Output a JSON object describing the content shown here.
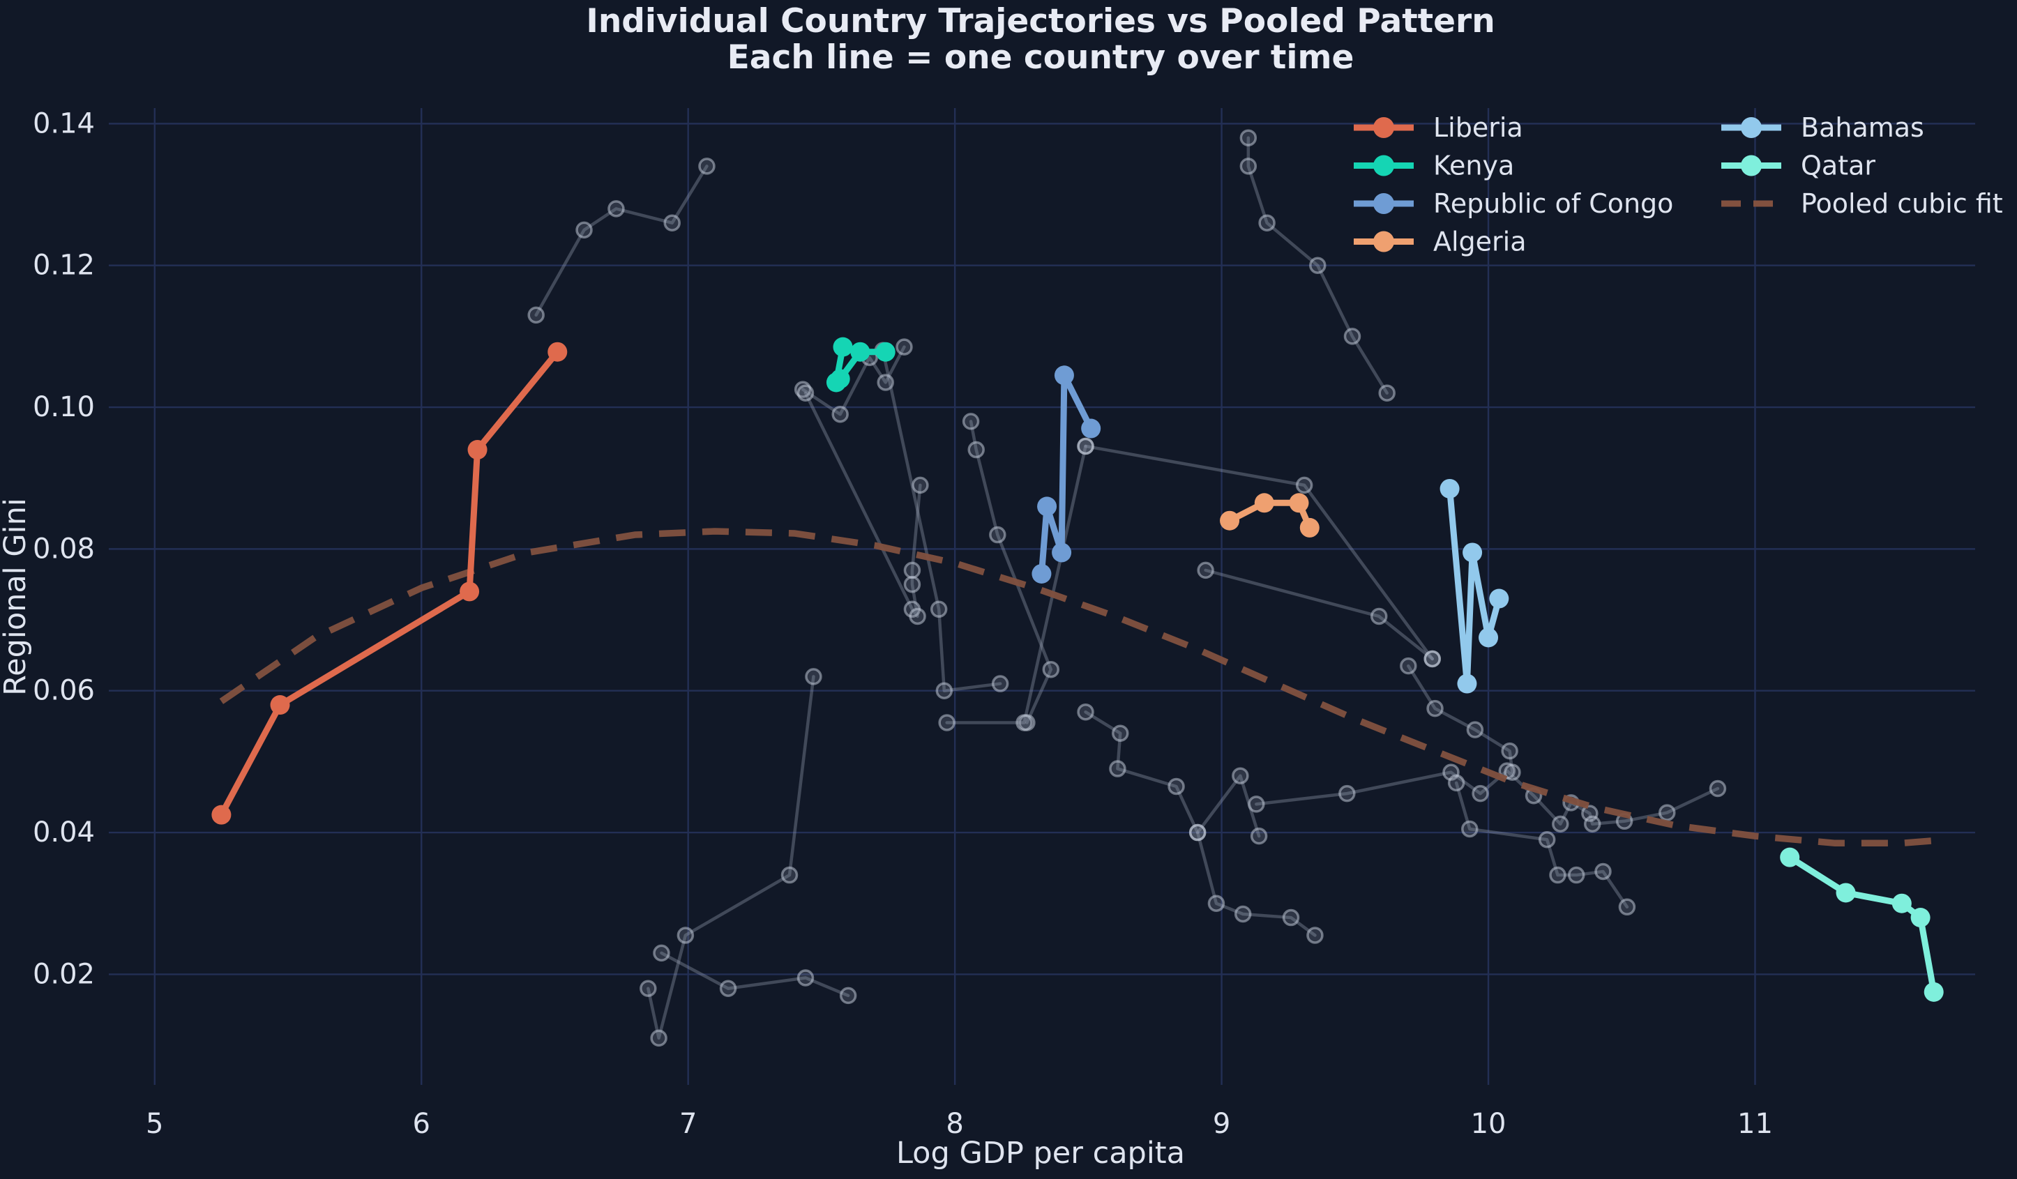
{
  "figure": {
    "title": "Individual Country Trajectories vs Pooled Pattern",
    "subtitle": "Each line = one country over time"
  },
  "legend": {
    "column1": [
      "Liberia",
      "Kenya",
      "Republic of Congo",
      "Algeria"
    ],
    "column2": [
      "Bahamas",
      "Qatar",
      "Pooled cubic fit"
    ]
  },
  "colors": {
    "background": "#111827",
    "grid": "#232f55",
    "text": "#e8ebf4",
    "background_lines": "#a9b1c5",
    "liberia": "#df6a4d",
    "kenya": "#15d5b4",
    "republic_of_congo": "#6f9cd4",
    "algeria": "#efa070",
    "bahamas": "#92c9ec",
    "qatar": "#7fefdc",
    "pooled_fit": "#82513f"
  },
  "chart_data": {
    "type": "line",
    "title": "Individual Country Trajectories vs Pooled Pattern",
    "subtitle": "Each line = one country over time",
    "xlabel": "Log GDP per capita",
    "ylabel": "Regional Gini",
    "xlim": [
      4.828,
      11.825
    ],
    "ylim": [
      0.0044,
      0.1422
    ],
    "x_ticks": [
      5,
      6,
      7,
      8,
      9,
      10,
      11
    ],
    "y_ticks": [
      0.02,
      0.04,
      0.06,
      0.08,
      0.1,
      0.12,
      0.14
    ],
    "y_tick_labels": [
      "0.02",
      "0.04",
      "0.06",
      "0.08",
      "0.10",
      "0.12",
      "0.14"
    ],
    "grid": true,
    "legend_position": "upper right, two columns",
    "series": [
      {
        "name": "Liberia",
        "color": "#df6a4d",
        "points": [
          [
            5.25,
            0.0425
          ],
          [
            5.47,
            0.058
          ],
          [
            6.18,
            0.074
          ],
          [
            6.21,
            0.094
          ],
          [
            6.51,
            0.1078
          ]
        ]
      },
      {
        "name": "Kenya",
        "color": "#15d5b4",
        "points": [
          [
            7.58,
            0.1085
          ],
          [
            7.555,
            0.1035
          ],
          [
            7.57,
            0.104
          ],
          [
            7.645,
            0.1078
          ],
          [
            7.74,
            0.1078
          ]
        ]
      },
      {
        "name": "Republic of Congo",
        "color": "#6f9cd4",
        "points": [
          [
            8.325,
            0.0765
          ],
          [
            8.345,
            0.086
          ],
          [
            8.4,
            0.0795
          ],
          [
            8.41,
            0.1045
          ],
          [
            8.51,
            0.097
          ]
        ]
      },
      {
        "name": "Algeria",
        "color": "#efa070",
        "points": [
          [
            9.03,
            0.084
          ],
          [
            9.16,
            0.0865
          ],
          [
            9.29,
            0.0865
          ],
          [
            9.33,
            0.083
          ]
        ]
      },
      {
        "name": "Bahamas",
        "color": "#92c9ec",
        "points": [
          [
            9.855,
            0.0885
          ],
          [
            9.92,
            0.061
          ],
          [
            9.94,
            0.0795
          ],
          [
            10.0,
            0.0675
          ],
          [
            10.04,
            0.073
          ]
        ]
      },
      {
        "name": "Qatar",
        "color": "#7fefdc",
        "points": [
          [
            11.13,
            0.0365
          ],
          [
            11.34,
            0.0315
          ],
          [
            11.55,
            0.03
          ],
          [
            11.62,
            0.028
          ],
          [
            11.67,
            0.0175
          ]
        ]
      }
    ],
    "pooled_fit": {
      "name": "Pooled cubic fit",
      "color": "#82513f",
      "style": "dashed",
      "points": [
        [
          5.25,
          0.0585
        ],
        [
          5.6,
          0.0675
        ],
        [
          6.0,
          0.0745
        ],
        [
          6.4,
          0.0795
        ],
        [
          6.8,
          0.082
        ],
        [
          7.1,
          0.0825
        ],
        [
          7.4,
          0.0822
        ],
        [
          7.7,
          0.0805
        ],
        [
          8.0,
          0.078
        ],
        [
          8.3,
          0.0745
        ],
        [
          8.6,
          0.0705
        ],
        [
          8.9,
          0.066
        ],
        [
          9.2,
          0.061
        ],
        [
          9.5,
          0.056
        ],
        [
          9.8,
          0.0515
        ],
        [
          10.1,
          0.047
        ],
        [
          10.4,
          0.0435
        ],
        [
          10.7,
          0.041
        ],
        [
          11.0,
          0.0395
        ],
        [
          11.3,
          0.0385
        ],
        [
          11.55,
          0.0385
        ],
        [
          11.72,
          0.039
        ]
      ]
    },
    "background_series": [
      {
        "points": [
          [
            6.43,
            0.113
          ],
          [
            6.61,
            0.125
          ],
          [
            6.73,
            0.128
          ],
          [
            6.94,
            0.126
          ],
          [
            7.07,
            0.134
          ]
        ]
      },
      {
        "points": [
          [
            7.43,
            0.1025
          ],
          [
            7.57,
            0.099
          ],
          [
            7.68,
            0.107
          ],
          [
            7.74,
            0.1035
          ],
          [
            7.81,
            0.1085
          ]
        ]
      },
      {
        "points": [
          [
            7.44,
            0.102
          ],
          [
            7.84,
            0.0715
          ],
          [
            7.86,
            0.0705
          ],
          [
            7.84,
            0.075
          ],
          [
            7.84,
            0.077
          ],
          [
            7.87,
            0.089
          ]
        ]
      },
      {
        "points": [
          [
            7.73,
            0.108
          ],
          [
            7.94,
            0.0715
          ],
          [
            7.96,
            0.06
          ],
          [
            8.17,
            0.061
          ]
        ]
      },
      {
        "points": [
          [
            6.85,
            0.018
          ],
          [
            6.89,
            0.011
          ],
          [
            6.99,
            0.0255
          ],
          [
            7.38,
            0.034
          ],
          [
            7.47,
            0.062
          ]
        ]
      },
      {
        "points": [
          [
            6.9,
            0.023
          ],
          [
            7.15,
            0.018
          ],
          [
            7.44,
            0.0195
          ],
          [
            7.6,
            0.017
          ]
        ]
      },
      {
        "points": [
          [
            8.06,
            0.098
          ],
          [
            8.08,
            0.094
          ],
          [
            8.16,
            0.082
          ],
          [
            8.36,
            0.063
          ],
          [
            8.27,
            0.0555
          ]
        ]
      },
      {
        "points": [
          [
            8.49,
            0.057
          ],
          [
            8.62,
            0.054
          ],
          [
            8.61,
            0.049
          ],
          [
            8.83,
            0.0465
          ],
          [
            8.91,
            0.04
          ],
          [
            8.98,
            0.03
          ],
          [
            9.08,
            0.0285
          ],
          [
            9.26,
            0.028
          ],
          [
            9.35,
            0.0255
          ]
        ]
      },
      {
        "points": [
          [
            8.91,
            0.04
          ],
          [
            9.07,
            0.048
          ],
          [
            9.14,
            0.0395
          ]
        ]
      },
      {
        "points": [
          [
            9.13,
            0.044
          ],
          [
            9.47,
            0.0455
          ],
          [
            9.86,
            0.0485
          ],
          [
            9.97,
            0.0455
          ],
          [
            10.07,
            0.0487
          ],
          [
            10.17,
            0.0452
          ],
          [
            10.27,
            0.0412
          ],
          [
            10.31,
            0.0442
          ],
          [
            10.38,
            0.0427
          ],
          [
            10.39,
            0.0412
          ],
          [
            10.51,
            0.0416
          ],
          [
            10.67,
            0.0428
          ],
          [
            10.86,
            0.0462
          ]
        ]
      },
      {
        "points": [
          [
            9.88,
            0.047
          ],
          [
            9.93,
            0.0405
          ],
          [
            10.22,
            0.039
          ],
          [
            10.26,
            0.034
          ],
          [
            10.33,
            0.034
          ],
          [
            10.43,
            0.0345
          ],
          [
            10.52,
            0.0295
          ]
        ]
      },
      {
        "points": [
          [
            9.1,
            0.138
          ],
          [
            9.1,
            0.134
          ],
          [
            9.17,
            0.126
          ],
          [
            9.36,
            0.12
          ],
          [
            9.49,
            0.11
          ],
          [
            9.62,
            0.102
          ]
        ]
      },
      {
        "points": [
          [
            8.94,
            0.077
          ],
          [
            9.59,
            0.0705
          ],
          [
            9.79,
            0.0645
          ]
        ]
      },
      {
        "points": [
          [
            9.7,
            0.0635
          ],
          [
            9.8,
            0.0575
          ],
          [
            9.95,
            0.0545
          ],
          [
            10.08,
            0.0515
          ],
          [
            10.09,
            0.0485
          ]
        ]
      },
      {
        "points": [
          [
            8.49,
            0.0945
          ],
          [
            9.31,
            0.089
          ],
          [
            9.79,
            0.0645
          ]
        ]
      },
      {
        "points": [
          [
            7.97,
            0.0555
          ],
          [
            8.26,
            0.0555
          ],
          [
            8.49,
            0.0945
          ]
        ]
      }
    ]
  }
}
